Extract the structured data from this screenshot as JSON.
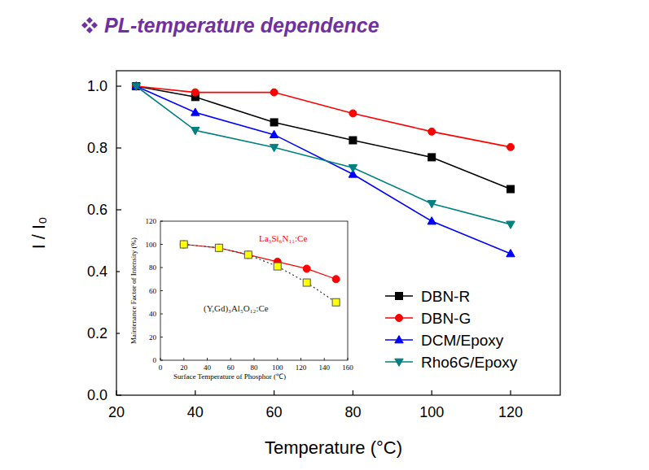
{
  "chart_data": [
    {
      "type": "line",
      "title": "PL-temperature dependence",
      "x_label": "Temperature (°C)",
      "y_label": "I / I₀",
      "x": [
        25,
        40,
        60,
        80,
        100,
        120
      ],
      "xlim": [
        20,
        132.6
      ],
      "xticks": [
        20,
        40,
        60,
        80,
        100,
        120
      ],
      "ylim": [
        0,
        1.05
      ],
      "yticks": [
        {
          "value": 0,
          "label": "0.0"
        },
        0.2,
        0.4,
        0.6,
        0.8,
        {
          "value": 1,
          "label": "1.0"
        }
      ],
      "legend": "lower right",
      "series": [
        {
          "name": "DBN-R",
          "color": "#000000",
          "marker": "square",
          "line_style": "solid",
          "values": [
            1.0,
            0.965,
            0.883,
            0.825,
            0.77,
            0.667
          ]
        },
        {
          "name": "DBN-G",
          "color": "#ff0000",
          "marker": "circle",
          "line_style": "solid",
          "values": [
            1.0,
            0.98,
            0.98,
            0.912,
            0.853,
            0.803
          ]
        },
        {
          "name": "DCM/Epoxy",
          "color": "#0000ff",
          "marker": "triangle-up",
          "line_style": "solid",
          "values": [
            1.0,
            0.915,
            0.843,
            0.715,
            0.563,
            0.458
          ]
        },
        {
          "name": "Rho6G/Epoxy",
          "color": "#008080",
          "marker": "triangle-down",
          "line_style": "solid",
          "values": [
            1.0,
            0.857,
            0.802,
            0.736,
            0.62,
            0.553
          ]
        }
      ]
    },
    {
      "type": "line",
      "x_label": "Surface Temperature of Phosphor (℃)",
      "y_label": "Maintenance Factor of Intensity (%)",
      "x": [
        20,
        50,
        75,
        100,
        125,
        150
      ],
      "xlim": [
        0,
        160
      ],
      "xticks": [
        0,
        20,
        40,
        60,
        80,
        100,
        120,
        140,
        160
      ],
      "ylim": [
        0,
        120
      ],
      "yticks": [
        0,
        20,
        40,
        60,
        80,
        100,
        120
      ],
      "series": [
        {
          "name": "La₃Si₆N₁₁:Ce",
          "color": "#ff0000",
          "marker": "circle",
          "line_style": "solid",
          "values": [
            100,
            97,
            91,
            85,
            79,
            70
          ]
        },
        {
          "name": "(Y,Gd)₃Al₅O₁₂:Ce",
          "color": "#ffff00",
          "marker": "square",
          "line_style": "dotted",
          "values": [
            100,
            97,
            91,
            81,
            67,
            50
          ]
        }
      ]
    }
  ]
}
